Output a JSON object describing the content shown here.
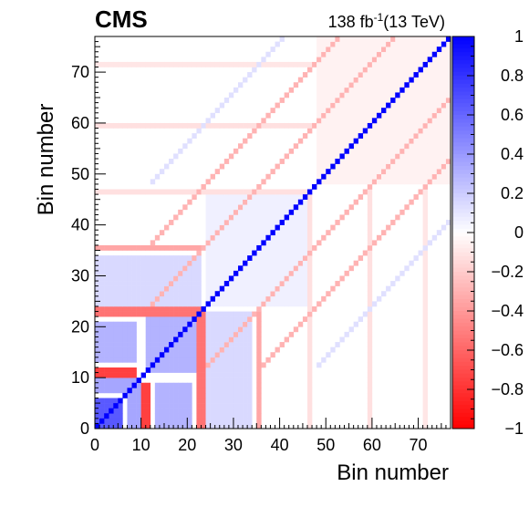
{
  "chart_data": {
    "type": "heatmap",
    "title": "",
    "experiment_label": "CMS",
    "lumi": {
      "value": "138 fb",
      "exponent": "-1",
      "energy": "(13 TeV)"
    },
    "xlabel": "Bin number",
    "ylabel": "Bin number",
    "xlim": [
      0,
      77
    ],
    "ylim": [
      0,
      77
    ],
    "n_bins": 77,
    "x_ticks": [
      "0",
      "10",
      "20",
      "30",
      "40",
      "50",
      "60",
      "70"
    ],
    "y_ticks": [
      "0",
      "10",
      "20",
      "30",
      "40",
      "50",
      "60",
      "70"
    ],
    "colorbar": {
      "zlim": [
        -1,
        1
      ],
      "ticks": [
        "1",
        "0.8",
        "0.6",
        "0.4",
        "0.2",
        "0",
        "−0.2",
        "−0.4",
        "−0.6",
        "−0.8",
        "−1"
      ],
      "tick_values": [
        1,
        0.8,
        0.6,
        0.4,
        0.2,
        0,
        -0.2,
        -0.4,
        -0.6,
        -0.8,
        -1
      ],
      "colors": {
        "positive": "#0000ff",
        "zero": "#ffffff",
        "negative": "#ff0000"
      }
    },
    "diagonal_value": 1.0,
    "blocks": [
      {
        "x": [
          0,
          6
        ],
        "y": [
          0,
          6
        ],
        "value": 0.65
      },
      {
        "x": [
          0,
          9
        ],
        "y": [
          7,
          10
        ],
        "value": 0.35
      },
      {
        "x": [
          7,
          10
        ],
        "y": [
          0,
          9
        ],
        "value": 0.35
      },
      {
        "x": [
          0,
          9
        ],
        "y": [
          13,
          21
        ],
        "value": 0.3
      },
      {
        "x": [
          13,
          21
        ],
        "y": [
          0,
          9
        ],
        "value": 0.3
      },
      {
        "x": [
          11,
          22
        ],
        "y": [
          11,
          22
        ],
        "value": 0.3
      },
      {
        "x": [
          0,
          9
        ],
        "y": [
          10,
          12
        ],
        "value": -0.75
      },
      {
        "x": [
          10,
          12
        ],
        "y": [
          0,
          9
        ],
        "value": -0.75
      },
      {
        "x": [
          0,
          24
        ],
        "y": [
          22,
          24
        ],
        "value": -0.55
      },
      {
        "x": [
          22,
          24
        ],
        "y": [
          0,
          24
        ],
        "value": -0.55
      },
      {
        "x": [
          0,
          23
        ],
        "y": [
          24,
          34
        ],
        "value": 0.15
      },
      {
        "x": [
          24,
          34
        ],
        "y": [
          0,
          23
        ],
        "value": 0.15
      },
      {
        "x": [
          0,
          36
        ],
        "y": [
          35,
          36
        ],
        "value": -0.35
      },
      {
        "x": [
          35,
          36
        ],
        "y": [
          0,
          36
        ],
        "value": -0.35
      },
      {
        "x": [
          0,
          47
        ],
        "y": [
          46,
          47
        ],
        "value": -0.12
      },
      {
        "x": [
          46,
          47
        ],
        "y": [
          0,
          47
        ],
        "value": -0.12
      },
      {
        "x": [
          0,
          60
        ],
        "y": [
          59,
          60
        ],
        "value": -0.12
      },
      {
        "x": [
          59,
          60
        ],
        "y": [
          0,
          60
        ],
        "value": -0.12
      },
      {
        "x": [
          0,
          72
        ],
        "y": [
          71,
          72
        ],
        "value": -0.1
      },
      {
        "x": [
          71,
          72
        ],
        "y": [
          0,
          72
        ],
        "value": -0.1
      },
      {
        "x": [
          24,
          46
        ],
        "y": [
          24,
          46
        ],
        "value": 0.06
      },
      {
        "x": [
          48,
          77
        ],
        "y": [
          48,
          77
        ],
        "value": -0.05
      }
    ],
    "offdiagonal_lines": [
      {
        "offset": 12,
        "from": 24,
        "to": 77,
        "value": -0.3
      },
      {
        "offset": 24,
        "from": 36,
        "to": 77,
        "value": -0.3
      },
      {
        "offset": 36,
        "from": 48,
        "to": 77,
        "value": 0.12
      }
    ]
  }
}
